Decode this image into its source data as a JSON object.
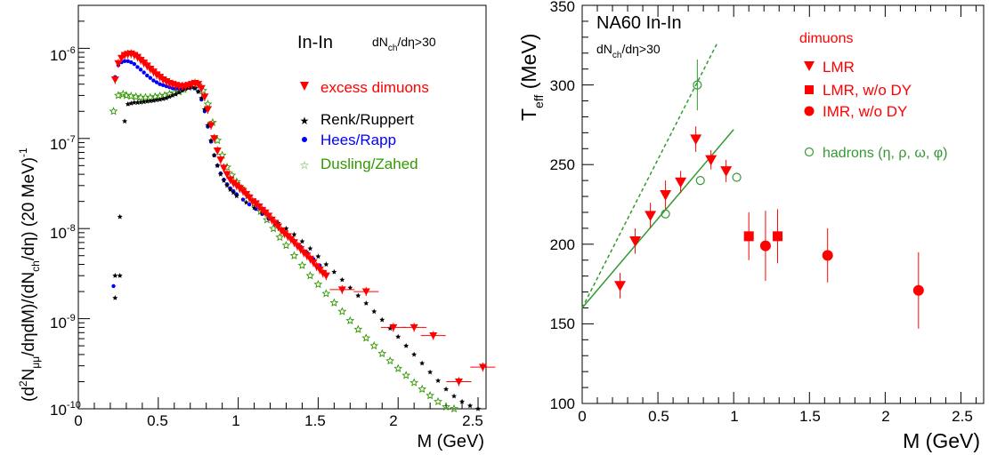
{
  "chart_data": [
    {
      "type": "scatter",
      "title": "In-In",
      "subtitle": "dN_ch/dη>30",
      "xlabel": "M (GeV)",
      "ylabel": "(d²N_μμ/dηdM)/(dN_ch/dη) (20 MeV)⁻¹",
      "xlim": [
        0,
        2.55
      ],
      "ylim": [
        1e-10,
        3e-06
      ],
      "yscale": "log",
      "grid": false,
      "legend_position": "top-right",
      "x_ticks": [
        "0",
        "0.5",
        "1",
        "1.5",
        "2",
        "2.5"
      ],
      "y_ticks": [
        "10⁻¹⁰",
        "10⁻⁹",
        "10⁻⁸",
        "10⁻⁷",
        "10⁻⁶"
      ],
      "series": [
        {
          "name": "excess dimuons",
          "color": "#ff0000",
          "marker": "triangle-down",
          "x": [
            0.23,
            0.25,
            0.27,
            0.29,
            0.31,
            0.33,
            0.35,
            0.37,
            0.39,
            0.41,
            0.43,
            0.45,
            0.47,
            0.49,
            0.51,
            0.53,
            0.55,
            0.57,
            0.59,
            0.61,
            0.63,
            0.65,
            0.67,
            0.69,
            0.71,
            0.73,
            0.75,
            0.77,
            0.79,
            0.81,
            0.83,
            0.85,
            0.87,
            0.89,
            0.91,
            0.93,
            0.95,
            0.97,
            0.99,
            1.01,
            1.03,
            1.05,
            1.07,
            1.09,
            1.11,
            1.13,
            1.15,
            1.17,
            1.19,
            1.21,
            1.23,
            1.25,
            1.27,
            1.29,
            1.31,
            1.33,
            1.35,
            1.37,
            1.39,
            1.41,
            1.43,
            1.45,
            1.47,
            1.49,
            1.51,
            1.53,
            1.55,
            1.65,
            1.8,
            1.97,
            2.1,
            2.22,
            2.38,
            2.53
          ],
          "y": [
            4.5e-07,
            6.8e-07,
            7.8e-07,
            8.4e-07,
            8.6e-07,
            8.7e-07,
            8.4e-07,
            8e-07,
            7.4e-07,
            6.9e-07,
            6.4e-07,
            5.9e-07,
            5.5e-07,
            5.1e-07,
            4.8e-07,
            4.5e-07,
            4.3e-07,
            4.1e-07,
            4e-07,
            3.9e-07,
            3.8e-07,
            3.8e-07,
            3.8e-07,
            3.9e-07,
            4e-07,
            4.1e-07,
            4e-07,
            3.6e-07,
            2.9e-07,
            2.1e-07,
            1.4e-07,
            1e-07,
            7.3e-08,
            5.8e-08,
            4.7e-08,
            4e-08,
            3.5e-08,
            3.2e-08,
            3e-08,
            2.8e-08,
            2.6e-08,
            2.4e-08,
            2.2e-08,
            2e-08,
            1.9e-08,
            1.75e-08,
            1.6e-08,
            1.5e-08,
            1.38e-08,
            1.25e-08,
            1.15e-08,
            1.05e-08,
            9.5e-09,
            8.8e-09,
            8.2e-09,
            7.6e-09,
            7e-09,
            6.4e-09,
            5.9e-09,
            5.4e-09,
            5e-09,
            4.6e-09,
            4.2e-09,
            3.8e-09,
            3.5e-09,
            3.2e-09,
            3e-09,
            2.1e-09,
            2e-09,
            8e-10,
            8e-10,
            6.5e-10,
            2e-10,
            2.9e-10
          ]
        },
        {
          "name": "Renk/Ruppert",
          "color": "#000000",
          "marker": "star",
          "x": [
            0.23,
            0.23,
            0.26,
            0.26,
            0.29,
            0.31,
            0.33,
            0.35,
            0.37,
            0.39,
            0.41,
            0.43,
            0.45,
            0.47,
            0.49,
            0.51,
            0.53,
            0.55,
            0.57,
            0.59,
            0.61,
            0.63,
            0.65,
            0.67,
            0.69,
            0.71,
            0.73,
            0.75,
            0.77,
            0.79,
            0.81,
            0.83,
            0.85,
            0.87,
            0.89,
            0.91,
            0.93,
            0.95,
            0.97,
            0.99,
            1.05,
            1.1,
            1.15,
            1.2,
            1.25,
            1.3,
            1.35,
            1.4,
            1.45,
            1.5,
            1.55,
            1.6,
            1.65,
            1.7,
            1.75,
            1.8,
            1.85,
            1.9,
            1.95,
            2.0,
            2.05,
            2.1,
            2.15,
            2.2,
            2.25,
            2.3,
            2.35,
            2.4,
            2.45,
            2.5
          ],
          "y": [
            3e-09,
            1.7e-09,
            1.35e-08,
            3e-09,
            1.55e-07,
            2.4e-07,
            2.45e-07,
            2.5e-07,
            2.5e-07,
            2.52e-07,
            2.55e-07,
            2.58e-07,
            2.6e-07,
            2.63e-07,
            2.67e-07,
            2.7e-07,
            2.75e-07,
            2.8e-07,
            2.9e-07,
            3e-07,
            3.1e-07,
            3.25e-07,
            3.4e-07,
            3.55e-07,
            3.65e-07,
            3.7e-07,
            3.6e-07,
            3.3e-07,
            2.8e-07,
            2.1e-07,
            1.4e-07,
            9.5e-08,
            6.5e-08,
            5e-08,
            4e-08,
            3.4e-08,
            3e-08,
            2.7e-08,
            2.5e-08,
            2.3e-08,
            1.95e-08,
            1.7e-08,
            1.5e-08,
            1.32e-08,
            1.15e-08,
            1e-08,
            8.6e-09,
            7.2e-09,
            6e-09,
            4.9e-09,
            4e-09,
            3.3e-09,
            2.7e-09,
            2.2e-09,
            1.8e-09,
            1.48e-09,
            1.2e-09,
            9.7e-10,
            7.8e-10,
            6.3e-10,
            5e-10,
            4e-10,
            3.2e-10,
            2.55e-10,
            2.05e-10,
            1.65e-10,
            1.38e-10,
            1.2e-10,
            1.08e-10,
            1e-10
          ]
        },
        {
          "name": "Hees/Rapp",
          "color": "#0000ff",
          "marker": "circle",
          "x": [
            0.22,
            0.23,
            0.25,
            0.27,
            0.29,
            0.31,
            0.33,
            0.35,
            0.37,
            0.39,
            0.41,
            0.43,
            0.45,
            0.47,
            0.49,
            0.51,
            0.53,
            0.55,
            0.57,
            0.59,
            0.61,
            0.63,
            0.65,
            0.67,
            0.69,
            0.71,
            0.73,
            0.75,
            0.77,
            0.79,
            0.81,
            0.83,
            0.85,
            0.87,
            0.89,
            0.91,
            0.93,
            0.95,
            0.97,
            0.99,
            1.03,
            1.07,
            1.11,
            1.15,
            1.19,
            1.23,
            1.27,
            1.31,
            1.35,
            1.39,
            1.43,
            1.47,
            1.51
          ],
          "y": [
            2.3e-09,
            4.8e-07,
            6.5e-07,
            7e-07,
            7.2e-07,
            7.2e-07,
            7e-07,
            6.7e-07,
            6.2e-07,
            5.8e-07,
            5.4e-07,
            5e-07,
            4.7e-07,
            4.4e-07,
            4.2e-07,
            4e-07,
            3.9e-07,
            3.8e-07,
            3.7e-07,
            3.6e-07,
            3.6e-07,
            3.55e-07,
            3.55e-07,
            3.6e-07,
            3.65e-07,
            3.7e-07,
            3.6e-07,
            3.3e-07,
            2.7e-07,
            2e-07,
            1.35e-07,
            9.2e-08,
            6.5e-08,
            5e-08,
            4.1e-08,
            3.5e-08,
            3.1e-08,
            2.8e-08,
            2.6e-08,
            2.4e-08,
            2.1e-08,
            1.85e-08,
            1.65e-08,
            1.45e-08,
            1.28e-08,
            1.12e-08,
            9.8e-09,
            8.5e-09,
            7.3e-09,
            6.3e-09,
            5.4e-09,
            4.6e-09,
            3.9e-09
          ]
        },
        {
          "name": "Dusling/Zahed",
          "color": "#339900",
          "marker": "open-star",
          "x": [
            0.22,
            0.25,
            0.28,
            0.3,
            0.33,
            0.36,
            0.39,
            0.42,
            0.45,
            0.48,
            0.51,
            0.54,
            0.57,
            0.6,
            0.63,
            0.66,
            0.69,
            0.72,
            0.75,
            0.78,
            0.81,
            0.84,
            0.87,
            0.9,
            0.93,
            0.96,
            0.99,
            1.02,
            1.06,
            1.1,
            1.14,
            1.18,
            1.22,
            1.26,
            1.3,
            1.35,
            1.4,
            1.45,
            1.5,
            1.55,
            1.6,
            1.65,
            1.7,
            1.75,
            1.8,
            1.85,
            1.9,
            1.95,
            2.0,
            2.05,
            2.1,
            2.15,
            2.2,
            2.25,
            2.3,
            2.35
          ],
          "y": [
            2e-07,
            3e-07,
            3.1e-07,
            3e-07,
            2.95e-07,
            2.9e-07,
            2.85e-07,
            2.85e-07,
            2.85e-07,
            2.9e-07,
            2.95e-07,
            3e-07,
            3.1e-07,
            3.2e-07,
            3.3e-07,
            3.5e-07,
            3.7e-07,
            3.9e-07,
            3.9e-07,
            3.4e-07,
            2.4e-07,
            1.5e-07,
            9.5e-08,
            6.5e-08,
            4.8e-08,
            3.9e-08,
            3.3e-08,
            2.8e-08,
            2.3e-08,
            1.9e-08,
            1.55e-08,
            1.25e-08,
            1e-08,
            8e-09,
            6.5e-09,
            5e-09,
            3.9e-09,
            3e-09,
            2.4e-09,
            1.9e-09,
            1.5e-09,
            1.2e-09,
            9.5e-10,
            7.6e-10,
            6.1e-10,
            5e-10,
            4.1e-10,
            3.4e-10,
            2.8e-10,
            2.35e-10,
            1.95e-10,
            1.65e-10,
            1.4e-10,
            1.2e-10,
            1.05e-10,
            1e-10
          ]
        }
      ]
    },
    {
      "type": "scatter",
      "title": "NA60 In-In",
      "subtitle": "dN_ch/dη>30",
      "xlabel": "M (GeV)",
      "ylabel": "T_eff (MeV)",
      "xlim": [
        0,
        2.65
      ],
      "ylim": [
        100,
        350
      ],
      "grid": false,
      "legend_position": "top-right",
      "legend_header": "dimuons",
      "x_ticks": [
        "0",
        "0.5",
        "1",
        "1.5",
        "2",
        "2.5"
      ],
      "y_ticks": [
        "100",
        "150",
        "200",
        "250",
        "300",
        "350"
      ],
      "series": [
        {
          "name": "LMR",
          "color": "#ff0000",
          "marker": "triangle-down",
          "x": [
            0.25,
            0.35,
            0.45,
            0.55,
            0.65,
            0.75,
            0.85,
            0.95
          ],
          "y": [
            174,
            202,
            218,
            231,
            239,
            266,
            253,
            246
          ],
          "yerr": [
            8,
            8,
            8,
            9,
            7,
            8,
            6,
            7
          ]
        },
        {
          "name": "LMR, w/o DY",
          "color": "#ff0000",
          "marker": "square",
          "x": [
            1.1,
            1.29
          ],
          "y": [
            205,
            205
          ],
          "yerr": [
            15,
            17
          ]
        },
        {
          "name": "IMR,  w/o DY",
          "color": "#ff0000",
          "marker": "circle",
          "x": [
            1.21,
            1.62,
            2.22
          ],
          "y": [
            199,
            193,
            171
          ],
          "yerr": [
            22,
            17,
            24
          ]
        },
        {
          "name": "hadrons (η, ρ, ω, φ)",
          "color": "#339933",
          "marker": "open-circle",
          "x": [
            0.55,
            0.76,
            0.78,
            1.02
          ],
          "y": [
            219,
            300,
            240,
            242
          ],
          "yerr": [
            0,
            16,
            0,
            0
          ]
        }
      ],
      "lines": [
        {
          "style": "solid",
          "color": "#339933",
          "x": [
            0,
            1.0
          ],
          "y": [
            160,
            272
          ]
        },
        {
          "style": "dashed",
          "color": "#339933",
          "x": [
            0,
            0.89
          ],
          "y": [
            160,
            326
          ]
        }
      ]
    }
  ],
  "left_panel": {
    "title": "In-In",
    "cut_prefix": "dN",
    "cut_sub": "ch",
    "cut_suffix": "/dη>30",
    "xlabel": "M (GeV)",
    "ylabel_part1": "(d",
    "ylabel_sup1": "2",
    "ylabel_part2": "N",
    "ylabel_sub1": "μμ",
    "ylabel_part3": "/dηdM)/(dN",
    "ylabel_sub2": "ch",
    "ylabel_part4": "/dη) (20 MeV)",
    "ylabel_sup2": "-1",
    "x_ticks": [
      "0",
      "0.5",
      "1",
      "1.5",
      "2",
      "2.5"
    ],
    "y_tick_base": "10",
    "y_tick_exps": [
      "-10",
      "-9",
      "-8",
      "-7",
      "-6"
    ],
    "legend": [
      "excess dimuons",
      "Renk/Ruppert",
      "Hees/Rapp",
      "Dusling/Zahed"
    ]
  },
  "right_panel": {
    "title": "NA60 In-In",
    "cut_prefix": "dN",
    "cut_sub": "ch",
    "cut_suffix": "/dη>30",
    "xlabel": "M (GeV)",
    "ylabel_main": "T",
    "ylabel_sub": "eff",
    "ylabel_unit": " (MeV)",
    "x_ticks": [
      "0",
      "0.5",
      "1",
      "1.5",
      "2",
      "2.5"
    ],
    "y_ticks": [
      "100",
      "150",
      "200",
      "250",
      "300",
      "350"
    ],
    "legend_header": "dimuons",
    "legend": [
      "LMR",
      "LMR, w/o DY",
      "IMR,  w/o DY",
      "hadrons (η, ρ, ω, φ)"
    ]
  },
  "colors": {
    "red": "#ff0000",
    "black": "#000000",
    "blue": "#0000ff",
    "green": "#339900",
    "green_dark": "#339933"
  }
}
